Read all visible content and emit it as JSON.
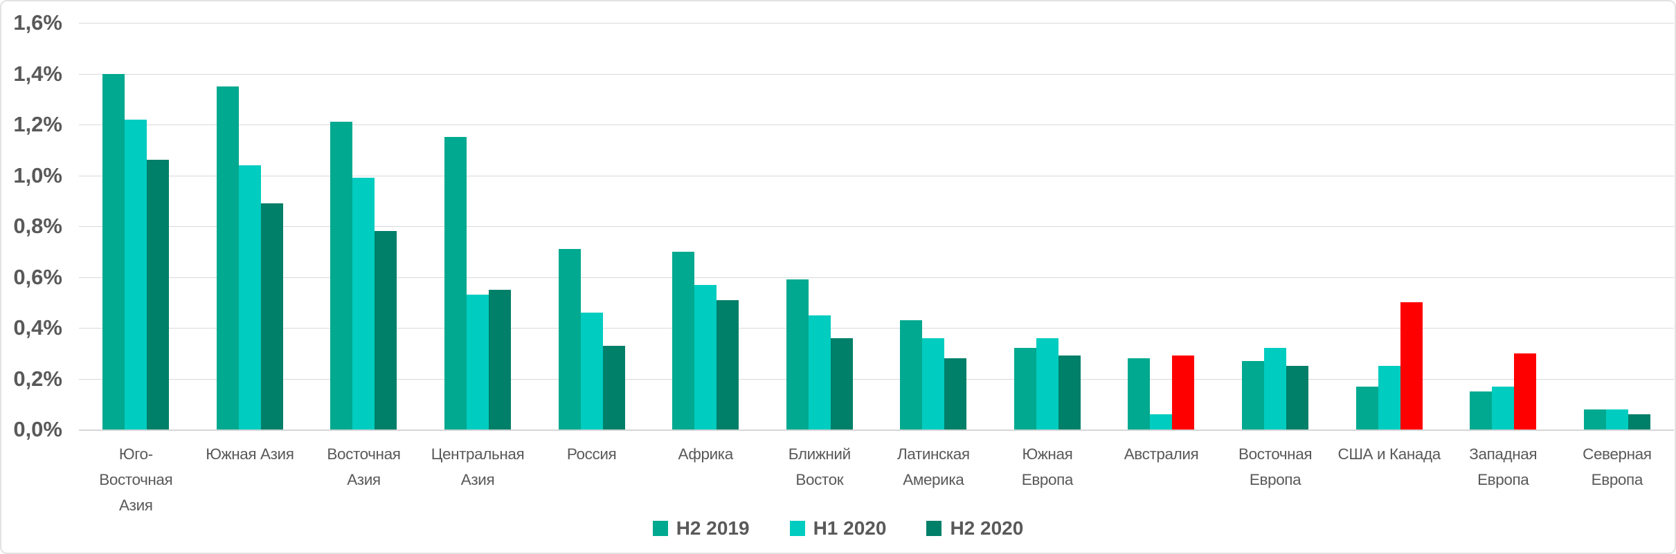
{
  "chart_data": {
    "type": "bar",
    "title": "",
    "xlabel": "",
    "ylabel": "",
    "value_unit": "%",
    "ylim": [
      0,
      1.6
    ],
    "ytick_step": 0.2,
    "ytick_labels": [
      "1,6%",
      "1,4%",
      "1,2%",
      "1,0%",
      "0,8%",
      "0,6%",
      "0,4%",
      "0,2%",
      "0,0%"
    ],
    "grid": true,
    "legend_position": "bottom",
    "categories": [
      "Юго-Восточная Азия",
      "Южная Азия",
      "Восточная Азия",
      "Центральная Азия",
      "Россия",
      "Африка",
      "Ближний Восток",
      "Латинская Америка",
      "Южная Европа",
      "Австралия",
      "Восточная Европа",
      "США и Канада",
      "Западная Европа",
      "Северная Европа"
    ],
    "series": [
      {
        "name": "H2 2019",
        "color": "#00A98F",
        "values": [
          1.4,
          1.35,
          1.21,
          1.15,
          0.71,
          0.7,
          0.59,
          0.43,
          0.32,
          0.28,
          0.27,
          0.17,
          0.15,
          0.08
        ]
      },
      {
        "name": "H1 2020",
        "color": "#00CCC0",
        "values": [
          1.22,
          1.04,
          0.99,
          0.53,
          0.46,
          0.57,
          0.45,
          0.36,
          0.36,
          0.06,
          0.32,
          0.25,
          0.17,
          0.08
        ]
      },
      {
        "name": "H2 2020",
        "color": "#007F69",
        "values": [
          1.06,
          0.89,
          0.78,
          0.55,
          0.33,
          0.51,
          0.36,
          0.28,
          0.29,
          0.29,
          0.25,
          0.5,
          0.3,
          0.06
        ],
        "highlight_color": "#FF0000",
        "highlight_indices": [
          9,
          11,
          12
        ]
      }
    ]
  },
  "colors": {
    "text": "#595959",
    "grid": "#D9D9D9",
    "background": "#FFFFFF",
    "highlight": "#FF0000"
  }
}
